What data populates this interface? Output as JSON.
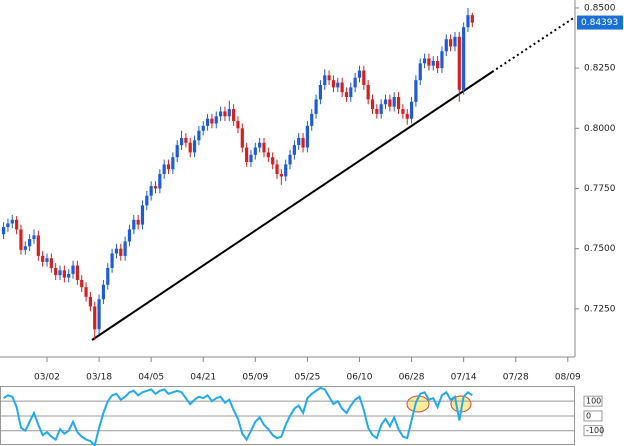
{
  "chart_data": [
    {
      "type": "candlestick",
      "categories": [
        null,
        null,
        null,
        null,
        null,
        null,
        null,
        null,
        null,
        null,
        "03/02",
        null,
        null,
        null,
        null,
        null,
        null,
        null,
        null,
        null,
        null,
        null,
        "03/18",
        null,
        null,
        null,
        null,
        null,
        null,
        null,
        null,
        null,
        null,
        null,
        "04/05",
        null,
        null,
        null,
        null,
        null,
        null,
        null,
        null,
        null,
        null,
        null,
        "04/21",
        null,
        null,
        null,
        null,
        null,
        null,
        null,
        null,
        null,
        null,
        null,
        "05/09",
        null,
        null,
        null,
        null,
        null,
        null,
        null,
        null,
        null,
        null,
        null,
        "05/25",
        null,
        null,
        null,
        null,
        null,
        null,
        null,
        null,
        null,
        null,
        null,
        "06/10",
        null,
        null,
        null,
        null,
        null,
        null,
        null,
        null,
        null,
        null,
        null,
        "06/28",
        null,
        null,
        null,
        null,
        null,
        null,
        null,
        null,
        null,
        null,
        null,
        "07/14",
        null,
        null,
        null,
        null,
        null,
        null,
        null,
        null,
        null,
        null,
        null,
        "07/28",
        null,
        null,
        null,
        null,
        null,
        null,
        null,
        null,
        null,
        null,
        null,
        "08/09"
      ],
      "open": [
        0.756,
        0.759,
        0.7605,
        0.762,
        0.758,
        0.7495,
        0.751,
        0.754,
        0.7555,
        0.747,
        0.7445,
        0.746,
        0.742,
        0.739,
        0.741,
        0.738,
        0.7395,
        0.743,
        0.737,
        0.734,
        0.73,
        0.726,
        0.7165,
        0.729,
        0.735,
        0.742,
        0.748,
        0.75,
        0.747,
        0.753,
        0.758,
        0.762,
        0.76,
        0.768,
        0.772,
        0.776,
        0.775,
        0.781,
        0.785,
        0.783,
        0.788,
        0.793,
        0.796,
        0.794,
        0.79,
        0.795,
        0.799,
        0.801,
        0.804,
        0.802,
        0.805,
        0.807,
        0.805,
        0.808,
        0.803,
        0.8,
        0.792,
        0.786,
        0.789,
        0.792,
        0.794,
        0.79,
        0.788,
        0.785,
        0.781,
        0.78,
        0.785,
        0.789,
        0.793,
        0.796,
        0.792,
        0.801,
        0.806,
        0.812,
        0.818,
        0.822,
        0.82,
        0.817,
        0.819,
        0.815,
        0.813,
        0.817,
        0.821,
        0.824,
        0.818,
        0.812,
        0.808,
        0.806,
        0.81,
        0.812,
        0.809,
        0.813,
        0.808,
        0.806,
        0.804,
        0.811,
        0.82,
        0.827,
        0.829,
        0.826,
        0.828,
        0.825,
        0.832,
        0.837,
        0.834,
        0.838,
        0.816,
        0.842,
        0.847,
        null,
        null,
        null,
        null,
        null,
        null,
        null,
        null,
        null,
        null,
        null,
        null,
        null,
        null,
        null,
        null,
        null,
        null,
        null,
        null,
        null,
        null
      ],
      "high": [
        0.761,
        0.7625,
        0.764,
        0.7635,
        0.76,
        0.753,
        0.756,
        0.758,
        0.7575,
        0.749,
        0.748,
        0.748,
        0.744,
        0.743,
        0.743,
        0.7415,
        0.745,
        0.745,
        0.739,
        0.736,
        0.732,
        0.728,
        0.731,
        0.737,
        0.744,
        0.75,
        0.752,
        0.752,
        0.755,
        0.76,
        0.764,
        0.764,
        0.77,
        0.774,
        0.778,
        0.778,
        0.783,
        0.787,
        0.787,
        0.79,
        0.795,
        0.799,
        0.798,
        0.796,
        0.797,
        0.801,
        0.803,
        0.806,
        0.806,
        0.807,
        0.809,
        0.809,
        0.8115,
        0.81,
        0.805,
        0.802,
        0.794,
        0.791,
        0.794,
        0.796,
        0.796,
        0.792,
        0.79,
        0.787,
        0.783,
        0.787,
        0.791,
        0.795,
        0.798,
        0.798,
        0.803,
        0.808,
        0.814,
        0.82,
        0.8245,
        0.824,
        0.822,
        0.821,
        0.821,
        0.817,
        0.819,
        0.823,
        0.826,
        0.826,
        0.82,
        0.814,
        0.81,
        0.812,
        0.814,
        0.814,
        0.815,
        0.815,
        0.81,
        0.808,
        0.813,
        0.822,
        0.829,
        0.831,
        0.831,
        0.83,
        0.83,
        0.834,
        0.839,
        0.839,
        0.84,
        0.84,
        0.844,
        0.85,
        0.848,
        null,
        null,
        null,
        null,
        null,
        null,
        null,
        null,
        null,
        null,
        null,
        null,
        null,
        null,
        null,
        null,
        null,
        null,
        null,
        null,
        null,
        null
      ],
      "low": [
        0.754,
        0.757,
        0.7585,
        0.756,
        0.7475,
        0.7475,
        0.749,
        0.752,
        0.745,
        0.7425,
        0.7425,
        0.74,
        0.737,
        0.737,
        0.736,
        0.736,
        0.7375,
        0.735,
        0.732,
        0.728,
        0.724,
        0.712,
        0.7145,
        0.727,
        0.733,
        0.74,
        0.746,
        0.745,
        0.745,
        0.751,
        0.756,
        0.758,
        0.758,
        0.766,
        0.77,
        0.773,
        0.773,
        0.779,
        0.781,
        0.781,
        0.786,
        0.791,
        0.792,
        0.788,
        0.788,
        0.793,
        0.797,
        0.799,
        0.8,
        0.8,
        0.803,
        0.803,
        0.803,
        0.801,
        0.798,
        0.79,
        0.784,
        0.784,
        0.787,
        0.79,
        0.788,
        0.786,
        0.783,
        0.779,
        0.7765,
        0.778,
        0.783,
        0.787,
        0.791,
        0.79,
        0.79,
        0.799,
        0.804,
        0.81,
        0.816,
        0.818,
        0.815,
        0.815,
        0.813,
        0.811,
        0.811,
        0.815,
        0.819,
        0.816,
        0.81,
        0.806,
        0.804,
        0.804,
        0.808,
        0.807,
        0.807,
        0.806,
        0.804,
        0.8015,
        0.802,
        0.809,
        0.818,
        0.825,
        0.824,
        0.824,
        0.823,
        0.823,
        0.83,
        0.832,
        0.832,
        0.811,
        0.814,
        0.84,
        0.842,
        null,
        null,
        null,
        null,
        null,
        null,
        null,
        null,
        null,
        null,
        null,
        null,
        null,
        null,
        null,
        null,
        null,
        null,
        null,
        null,
        null,
        null
      ],
      "close": [
        0.759,
        0.7605,
        0.762,
        0.758,
        0.7495,
        0.751,
        0.754,
        0.7555,
        0.747,
        0.7445,
        0.746,
        0.742,
        0.739,
        0.741,
        0.738,
        0.7395,
        0.743,
        0.737,
        0.734,
        0.73,
        0.726,
        0.7165,
        0.729,
        0.735,
        0.742,
        0.748,
        0.75,
        0.747,
        0.753,
        0.758,
        0.762,
        0.76,
        0.768,
        0.772,
        0.776,
        0.775,
        0.781,
        0.785,
        0.783,
        0.788,
        0.793,
        0.796,
        0.794,
        0.79,
        0.795,
        0.799,
        0.801,
        0.804,
        0.802,
        0.805,
        0.807,
        0.805,
        0.808,
        0.803,
        0.8,
        0.792,
        0.786,
        0.789,
        0.792,
        0.794,
        0.79,
        0.788,
        0.785,
        0.781,
        0.78,
        0.785,
        0.789,
        0.793,
        0.796,
        0.792,
        0.801,
        0.806,
        0.812,
        0.818,
        0.822,
        0.82,
        0.817,
        0.819,
        0.815,
        0.813,
        0.817,
        0.821,
        0.824,
        0.818,
        0.812,
        0.808,
        0.806,
        0.81,
        0.812,
        0.809,
        0.813,
        0.808,
        0.806,
        0.804,
        0.811,
        0.82,
        0.827,
        0.829,
        0.826,
        0.828,
        0.825,
        0.832,
        0.837,
        0.834,
        0.838,
        0.816,
        0.842,
        0.847,
        0.84393,
        null,
        null,
        null,
        null,
        null,
        null,
        null,
        null,
        null,
        null,
        null,
        null,
        null,
        null,
        null,
        null,
        null,
        null,
        null,
        null,
        null,
        null
      ],
      "up_color": "#1f5bd8",
      "down_color": "#d42020",
      "ylim": [
        0.705,
        0.8533
      ],
      "yticks": [
        {
          "value": 0.85,
          "label": "0.8500"
        },
        {
          "value": 0.825,
          "label": "0.8250"
        },
        {
          "value": 0.8,
          "label": "0.8000"
        },
        {
          "value": 0.775,
          "label": "0.7750"
        },
        {
          "value": 0.75,
          "label": "0.7500"
        },
        {
          "value": 0.725,
          "label": "0.7250"
        }
      ],
      "annotations": [
        {
          "text": "0.84393",
          "y": 0.84393
        }
      ]
    },
    {
      "type": "line",
      "color": "#22aaee",
      "values": [
        120,
        140,
        130,
        60,
        -80,
        -100,
        -40,
        20,
        -60,
        -130,
        -110,
        -140,
        -160,
        -90,
        -120,
        -100,
        -40,
        -110,
        -140,
        -160,
        -170,
        -200,
        -80,
        20,
        100,
        140,
        150,
        110,
        130,
        160,
        170,
        140,
        160,
        170,
        180,
        150,
        170,
        180,
        150,
        160,
        170,
        160,
        120,
        80,
        110,
        130,
        120,
        140,
        100,
        120,
        130,
        90,
        110,
        40,
        -20,
        -120,
        -160,
        -100,
        -40,
        -10,
        -60,
        -90,
        -130,
        -150,
        -140,
        -60,
        0,
        50,
        70,
        20,
        120,
        150,
        170,
        190,
        180,
        130,
        80,
        100,
        50,
        20,
        70,
        110,
        130,
        40,
        -80,
        -130,
        -150,
        -60,
        -20,
        -70,
        -10,
        -90,
        -140,
        -150,
        -30,
        90,
        150,
        160,
        110,
        120,
        60,
        140,
        160,
        110,
        130,
        -30,
        130,
        160,
        140,
        null,
        null,
        null,
        null,
        null,
        null,
        null,
        null,
        null,
        null,
        null,
        null,
        null,
        null,
        null,
        null,
        null,
        null,
        null,
        null,
        null,
        null
      ],
      "ylim": [
        -190,
        196
      ],
      "yticks": [
        100,
        0,
        -100
      ]
    }
  ]
}
